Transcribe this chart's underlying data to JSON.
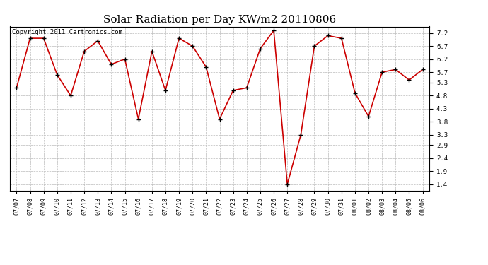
{
  "title": "Solar Radiation per Day KW/m2 20110806",
  "copyright": "Copyright 2011 Cartronics.com",
  "dates": [
    "07/07",
    "07/08",
    "07/09",
    "07/10",
    "07/11",
    "07/12",
    "07/13",
    "07/14",
    "07/15",
    "07/16",
    "07/17",
    "07/18",
    "07/19",
    "07/20",
    "07/21",
    "07/22",
    "07/23",
    "07/24",
    "07/25",
    "07/26",
    "07/27",
    "07/28",
    "07/29",
    "07/30",
    "07/31",
    "08/01",
    "08/02",
    "08/03",
    "08/04",
    "08/05",
    "08/06"
  ],
  "values": [
    5.1,
    7.0,
    7.0,
    5.6,
    4.8,
    6.5,
    6.9,
    6.0,
    6.2,
    3.9,
    6.5,
    5.0,
    7.0,
    6.7,
    5.9,
    3.9,
    5.0,
    5.1,
    6.6,
    7.3,
    1.4,
    3.3,
    6.7,
    7.1,
    7.0,
    4.9,
    4.0,
    5.7,
    5.8,
    5.4,
    5.8
  ],
  "line_color": "#cc0000",
  "marker_color": "#000000",
  "bg_color": "#ffffff",
  "grid_color": "#bbbbbb",
  "ylim": [
    1.15,
    7.45
  ],
  "yticks": [
    1.4,
    1.9,
    2.4,
    2.9,
    3.3,
    3.8,
    4.3,
    4.8,
    5.3,
    5.7,
    6.2,
    6.7,
    7.2
  ],
  "title_fontsize": 11,
  "tick_fontsize": 6,
  "copyright_fontsize": 6.5
}
